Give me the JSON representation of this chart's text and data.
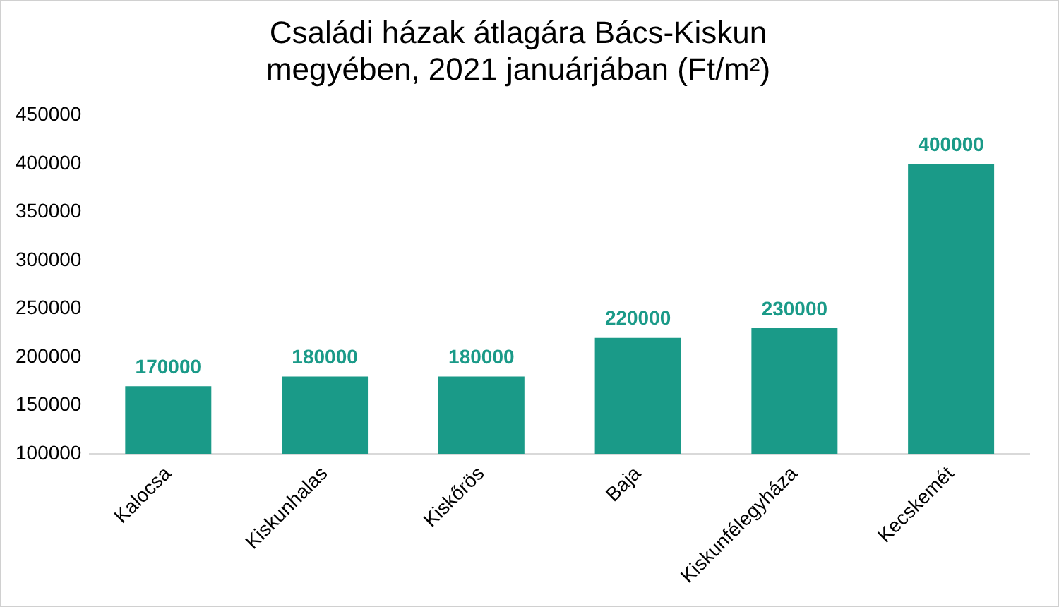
{
  "chart_data": {
    "type": "bar",
    "title": "Családi házak átlagára Bács-Kiskun megyében, 2021 januárjában (Ft/m²)",
    "categories": [
      "Kalocsa",
      "Kiskunhalas",
      "Kiskőrös",
      "Baja",
      "Kiskunfélegyháza",
      "Kecskemét"
    ],
    "values": [
      170000,
      180000,
      180000,
      220000,
      230000,
      400000
    ],
    "color": "#1a9a88",
    "ylim": [
      100000,
      450000
    ],
    "yticks": [
      100000,
      150000,
      200000,
      250000,
      300000,
      350000,
      400000,
      450000
    ],
    "grid": false,
    "legend": false,
    "data_labels": true
  }
}
